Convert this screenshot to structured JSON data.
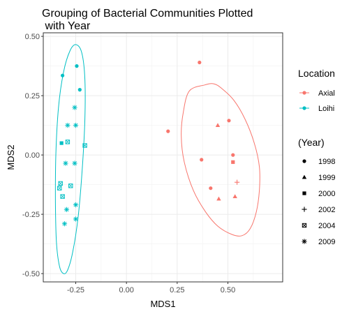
{
  "chart_data": {
    "type": "scatter",
    "title_lines": [
      "Grouping of Bacterial Communities Plotted",
      " with Year"
    ],
    "xlabel": "MDS1",
    "ylabel": "MDS2",
    "xlim": [
      -0.41,
      0.77
    ],
    "ylim": [
      -0.535,
      0.515
    ],
    "x_ticks": [
      -0.25,
      0.0,
      0.25,
      0.5
    ],
    "x_tick_labels": [
      "-0.25",
      "0.00",
      "0.25",
      "0.50"
    ],
    "y_ticks": [
      -0.5,
      -0.25,
      0.0,
      0.25,
      0.5
    ],
    "y_tick_labels": [
      "-0.50",
      "-0.25",
      "0.00",
      "0.25",
      "0.50"
    ],
    "grid": true,
    "legend_placement": "right",
    "legend": {
      "color_title": "Location",
      "color_entries": [
        {
          "label": "Axial",
          "color": "#F8766D"
        },
        {
          "label": "Loihi",
          "color": "#00BFC4"
        }
      ],
      "shape_title": "(Year)",
      "shape_entries": [
        {
          "label": "1998",
          "shape": "circle"
        },
        {
          "label": "1999",
          "shape": "triangle"
        },
        {
          "label": "2000",
          "shape": "square"
        },
        {
          "label": "2002",
          "shape": "plus"
        },
        {
          "label": "2004",
          "shape": "boxcross"
        },
        {
          "label": "2009",
          "shape": "asterisk"
        }
      ]
    },
    "ellipses": [
      {
        "group": "Axial",
        "color": "#F8766D",
        "points": [
          [
            0.385,
            0.295
          ],
          [
            0.31,
            0.27
          ],
          [
            0.28,
            0.18
          ],
          [
            0.27,
            0.08
          ],
          [
            0.285,
            -0.03
          ],
          [
            0.33,
            -0.15
          ],
          [
            0.39,
            -0.24
          ],
          [
            0.45,
            -0.3
          ],
          [
            0.52,
            -0.335
          ],
          [
            0.57,
            -0.34
          ],
          [
            0.61,
            -0.31
          ],
          [
            0.64,
            -0.24
          ],
          [
            0.655,
            -0.15
          ],
          [
            0.655,
            -0.05
          ],
          [
            0.63,
            0.05
          ],
          [
            0.585,
            0.15
          ],
          [
            0.53,
            0.23
          ],
          [
            0.47,
            0.28
          ],
          [
            0.43,
            0.3
          ]
        ]
      },
      {
        "group": "Loihi",
        "color": "#00BFC4",
        "points": [
          [
            -0.248,
            0.465
          ],
          [
            -0.278,
            0.44
          ],
          [
            -0.31,
            0.35
          ],
          [
            -0.335,
            0.2
          ],
          [
            -0.348,
            0.0
          ],
          [
            -0.35,
            -0.2
          ],
          [
            -0.345,
            -0.37
          ],
          [
            -0.33,
            -0.47
          ],
          [
            -0.31,
            -0.5
          ],
          [
            -0.29,
            -0.485
          ],
          [
            -0.265,
            -0.41
          ],
          [
            -0.238,
            -0.26
          ],
          [
            -0.218,
            -0.06
          ],
          [
            -0.205,
            0.15
          ],
          [
            -0.205,
            0.32
          ],
          [
            -0.22,
            0.43
          ]
        ]
      }
    ],
    "series": [
      {
        "name": "Axial",
        "color": "#F8766D",
        "points": [
          {
            "x": 0.36,
            "y": 0.39,
            "year": "1998"
          },
          {
            "x": 0.205,
            "y": 0.1,
            "year": "1998"
          },
          {
            "x": 0.505,
            "y": 0.145,
            "year": "1998"
          },
          {
            "x": 0.37,
            "y": -0.02,
            "year": "1998"
          },
          {
            "x": 0.525,
            "y": 0.0,
            "year": "1998"
          },
          {
            "x": 0.415,
            "y": -0.14,
            "year": "1998"
          },
          {
            "x": 0.45,
            "y": 0.125,
            "year": "1999"
          },
          {
            "x": 0.455,
            "y": -0.185,
            "year": "1999"
          },
          {
            "x": 0.535,
            "y": -0.175,
            "year": "1999"
          },
          {
            "x": 0.525,
            "y": -0.03,
            "year": "2000"
          },
          {
            "x": 0.545,
            "y": -0.115,
            "year": "2002"
          }
        ]
      },
      {
        "name": "Loihi",
        "color": "#00BFC4",
        "points": [
          {
            "x": -0.315,
            "y": 0.335,
            "year": "1998"
          },
          {
            "x": -0.245,
            "y": 0.375,
            "year": "1998"
          },
          {
            "x": -0.23,
            "y": 0.275,
            "year": "1998"
          },
          {
            "x": -0.32,
            "y": 0.05,
            "year": "2000"
          },
          {
            "x": -0.29,
            "y": 0.055,
            "year": "2004"
          },
          {
            "x": -0.205,
            "y": 0.04,
            "year": "2004"
          },
          {
            "x": -0.325,
            "y": -0.12,
            "year": "2004"
          },
          {
            "x": -0.33,
            "y": -0.14,
            "year": "2004"
          },
          {
            "x": -0.315,
            "y": -0.175,
            "year": "2004"
          },
          {
            "x": -0.275,
            "y": -0.13,
            "year": "2004"
          },
          {
            "x": -0.255,
            "y": 0.2,
            "year": "2009"
          },
          {
            "x": -0.29,
            "y": 0.125,
            "year": "2009"
          },
          {
            "x": -0.25,
            "y": 0.125,
            "year": "2009"
          },
          {
            "x": -0.3,
            "y": -0.035,
            "year": "2009"
          },
          {
            "x": -0.255,
            "y": -0.035,
            "year": "2009"
          },
          {
            "x": -0.295,
            "y": -0.23,
            "year": "2009"
          },
          {
            "x": -0.25,
            "y": -0.21,
            "year": "2009"
          },
          {
            "x": -0.305,
            "y": -0.29,
            "year": "2009"
          },
          {
            "x": -0.25,
            "y": -0.27,
            "year": "2009"
          }
        ]
      }
    ]
  }
}
